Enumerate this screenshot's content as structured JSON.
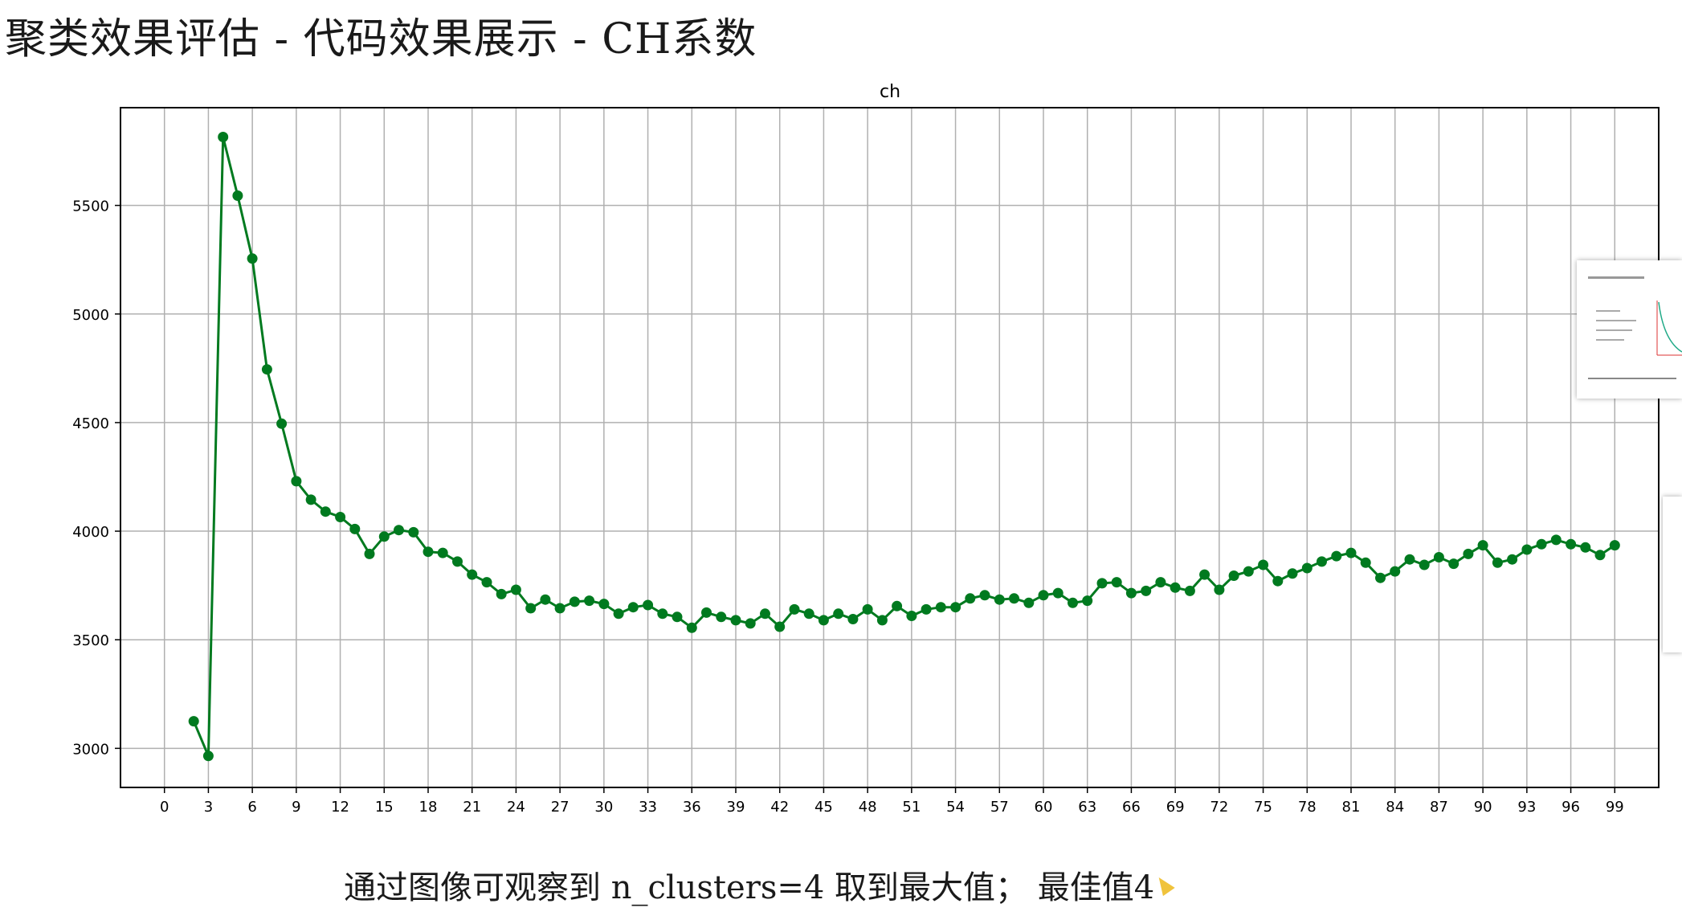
{
  "slide": {
    "title": "聚类效果评估 - 代码效果展示 - CH系数",
    "caption": "通过图像可观察到 n_clusters=4 取到最大值； 最佳值4"
  },
  "colors": {
    "line": "#007a1f",
    "grid": "#b0b0b0",
    "axis": "#000000"
  },
  "chart_data": {
    "type": "line",
    "title": "ch",
    "xlabel": "",
    "ylabel": "",
    "xlim": [
      -3,
      102
    ],
    "ylim": [
      2820,
      5950
    ],
    "x_ticks": [
      0,
      3,
      6,
      9,
      12,
      15,
      18,
      21,
      24,
      27,
      30,
      33,
      36,
      39,
      42,
      45,
      48,
      51,
      54,
      57,
      60,
      63,
      66,
      69,
      72,
      75,
      78,
      81,
      84,
      87,
      90,
      93,
      96,
      99
    ],
    "y_ticks": [
      3000,
      3500,
      4000,
      4500,
      5000,
      5500
    ],
    "grid": true,
    "marker": "circle",
    "series": [
      {
        "x": [
          2,
          3,
          4,
          5,
          6,
          7,
          8,
          9,
          10,
          11,
          12,
          13,
          14,
          15,
          16,
          17,
          18,
          19,
          20,
          21,
          22,
          23,
          24,
          25,
          26,
          27,
          28,
          29,
          30,
          31,
          32,
          33,
          34,
          35,
          36,
          37,
          38,
          39,
          40,
          41,
          42,
          43,
          44,
          45,
          46,
          47,
          48,
          49,
          50,
          51,
          52,
          53,
          54,
          55,
          56,
          57,
          58,
          59,
          60,
          61,
          62,
          63,
          64,
          65,
          66,
          67,
          68,
          69,
          70,
          71,
          72,
          73,
          74,
          75,
          76,
          77,
          78,
          79,
          80,
          81,
          82,
          83,
          84,
          85,
          86,
          87,
          88,
          89,
          90,
          91,
          92,
          93,
          94,
          95,
          96,
          97,
          98,
          99
        ],
        "values": [
          3125,
          2965,
          5815,
          5545,
          5255,
          4745,
          4495,
          4230,
          4145,
          4090,
          4065,
          4010,
          3895,
          3975,
          4005,
          3995,
          3905,
          3900,
          3860,
          3800,
          3765,
          3710,
          3730,
          3645,
          3685,
          3645,
          3675,
          3680,
          3665,
          3620,
          3650,
          3660,
          3620,
          3605,
          3555,
          3625,
          3605,
          3590,
          3575,
          3620,
          3560,
          3640,
          3620,
          3590,
          3620,
          3595,
          3640,
          3590,
          3655,
          3610,
          3640,
          3650,
          3650,
          3690,
          3705,
          3685,
          3690,
          3670,
          3705,
          3715,
          3670,
          3680,
          3760,
          3765,
          3715,
          3725,
          3765,
          3740,
          3725,
          3800,
          3730,
          3795,
          3815,
          3845,
          3770,
          3805,
          3830,
          3860,
          3885,
          3900,
          3855,
          3785,
          3815,
          3870,
          3845,
          3880,
          3850,
          3895,
          3935,
          3855,
          3870,
          3915,
          3940,
          3960,
          3940,
          3925,
          3890,
          3935
        ]
      }
    ]
  }
}
